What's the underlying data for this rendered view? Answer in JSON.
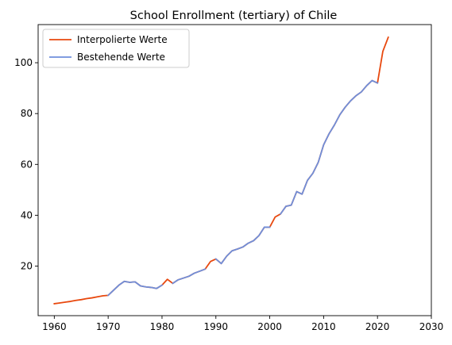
{
  "chart_data": {
    "type": "line",
    "title": "School Enrollment (tertiary) of Chile",
    "xlabel": "",
    "ylabel": "",
    "xlim": [
      1957.0,
      2030.0
    ],
    "ylim": [
      0.5,
      115.0
    ],
    "xticks": [
      1960,
      1970,
      1980,
      1990,
      2000,
      2010,
      2020,
      2030
    ],
    "yticks": [
      20,
      40,
      60,
      80,
      100
    ],
    "grid": false,
    "legend_position": "upper left",
    "series": [
      {
        "name": "Interpolierte Werte",
        "color": "#e8480e",
        "x": [
          1960,
          1961,
          1962,
          1963,
          1964,
          1965,
          1966,
          1967,
          1968,
          1969,
          1970,
          1971,
          1972,
          1973,
          1974,
          1975,
          1976,
          1977,
          1978,
          1979,
          1980,
          1981,
          1982,
          1983,
          1984,
          1985,
          1986,
          1987,
          1988,
          1989,
          1990,
          1991,
          1992,
          1993,
          1994,
          1995,
          1996,
          1997,
          1998,
          1999,
          2000,
          2001,
          2002,
          2003,
          2004,
          2005,
          2006,
          2007,
          2008,
          2009,
          2010,
          2011,
          2012,
          2013,
          2014,
          2015,
          2016,
          2017,
          2018,
          2019,
          2020,
          2021,
          2022
        ],
        "y": [
          5.2,
          5.5,
          5.8,
          6.1,
          6.5,
          6.8,
          7.2,
          7.5,
          7.9,
          8.3,
          8.5,
          10.5,
          12.5,
          14.0,
          13.6,
          13.8,
          12.2,
          11.8,
          11.6,
          11.2,
          12.5,
          14.8,
          13.2,
          14.6,
          15.3,
          16.0,
          17.2,
          18.0,
          18.8,
          21.8,
          22.8,
          21.0,
          23.9,
          26.0,
          26.7,
          27.5,
          29.0,
          30.0,
          32.0,
          35.3,
          35.3,
          39.3,
          40.5,
          43.5,
          44.0,
          49.3,
          48.3,
          53.7,
          56.5,
          60.8,
          67.7,
          72.0,
          75.5,
          79.5,
          82.5,
          85.0,
          87.0,
          88.5,
          91.0,
          93.0,
          92.0,
          104.5,
          110.0
        ]
      },
      {
        "name": "Bestehende Werte",
        "color": "#6f8fdb",
        "x": [
          1970,
          1971,
          1972,
          1973,
          1974,
          1975,
          1976,
          1977,
          1978,
          1979,
          1980,
          null,
          1982,
          1983,
          1984,
          1985,
          1986,
          1987,
          1988,
          null,
          1990,
          1991,
          1992,
          1993,
          1994,
          1995,
          1996,
          1997,
          1998,
          1999,
          2000,
          null,
          2002,
          2003,
          2004,
          2005,
          2006,
          2007,
          2008,
          2009,
          2010,
          2011,
          2012,
          2013,
          2014,
          2015,
          2016,
          2017,
          2018,
          2019,
          2020
        ],
        "y": [
          8.5,
          10.5,
          12.5,
          14.0,
          13.6,
          13.8,
          12.2,
          11.8,
          11.6,
          11.2,
          12.5,
          null,
          13.2,
          14.6,
          15.3,
          16.0,
          17.2,
          18.0,
          18.8,
          null,
          22.8,
          21.0,
          23.9,
          26.0,
          26.7,
          27.5,
          29.0,
          30.0,
          32.0,
          35.3,
          35.3,
          null,
          40.5,
          43.5,
          44.0,
          49.3,
          48.3,
          53.7,
          56.5,
          60.8,
          67.7,
          72.0,
          75.5,
          79.5,
          82.5,
          85.0,
          87.0,
          88.5,
          91.0,
          93.0,
          92.0
        ]
      }
    ]
  }
}
